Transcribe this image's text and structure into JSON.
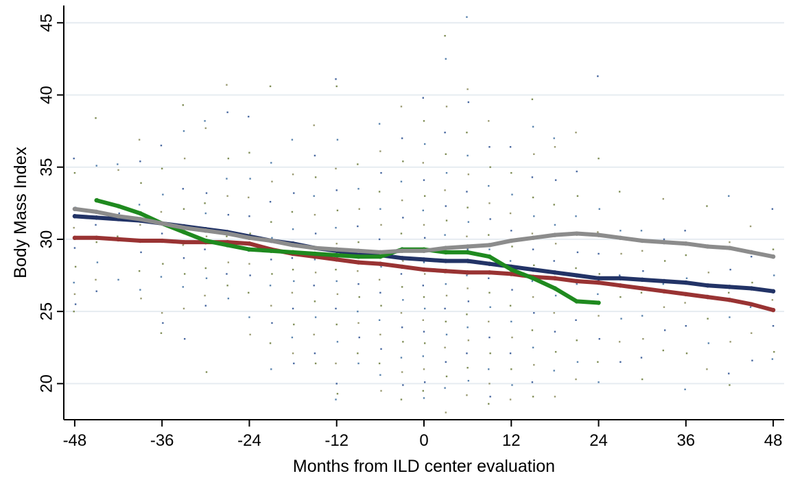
{
  "chart_data": {
    "type": "line",
    "title": "",
    "xlabel": "Months from ILD center evaluation",
    "ylabel": "Body Mass Index",
    "xlim": [
      -49.5,
      49.5
    ],
    "ylim": [
      17.5,
      46.2
    ],
    "x_ticks": [
      -48,
      -36,
      -24,
      -12,
      0,
      12,
      24,
      36,
      48
    ],
    "y_ticks": [
      20,
      25,
      30,
      35,
      40,
      45
    ],
    "grid": "horizontal",
    "legend": "none",
    "series": [
      {
        "color": "#223366",
        "x": [
          -48,
          -45,
          -42,
          -39,
          -36,
          -33,
          -30,
          -27,
          -24,
          -21,
          -18,
          -15,
          -12,
          -9,
          -6,
          -3,
          0,
          3,
          6,
          9,
          12,
          15,
          18,
          21,
          24,
          27,
          30,
          33,
          36,
          39,
          42,
          45,
          48
        ],
        "y": [
          31.6,
          31.5,
          31.4,
          31.3,
          31.1,
          30.9,
          30.7,
          30.5,
          30.2,
          29.9,
          29.7,
          29.4,
          29.2,
          29.0,
          28.9,
          28.7,
          28.6,
          28.5,
          28.5,
          28.3,
          28.1,
          27.9,
          27.7,
          27.5,
          27.3,
          27.3,
          27.2,
          27.1,
          27.0,
          26.8,
          26.7,
          26.6,
          26.4
        ]
      },
      {
        "color": "#993333",
        "x": [
          -48,
          -45,
          -42,
          -39,
          -36,
          -33,
          -30,
          -27,
          -24,
          -21,
          -18,
          -15,
          -12,
          -9,
          -6,
          -3,
          0,
          3,
          6,
          9,
          12,
          15,
          18,
          21,
          24,
          27,
          30,
          33,
          36,
          39,
          42,
          45,
          48
        ],
        "y": [
          30.1,
          30.1,
          30.0,
          29.9,
          29.9,
          29.8,
          29.8,
          29.8,
          29.7,
          29.3,
          29.0,
          28.8,
          28.6,
          28.4,
          28.3,
          28.1,
          27.9,
          27.8,
          27.7,
          27.7,
          27.6,
          27.4,
          27.3,
          27.1,
          27.0,
          26.8,
          26.6,
          26.4,
          26.2,
          26.0,
          25.8,
          25.5,
          25.1
        ]
      },
      {
        "color": "#1f8a1f",
        "x": [
          -45,
          -42,
          -39,
          -36,
          -33,
          -30,
          -27,
          -24,
          -21,
          -18,
          -15,
          -12,
          -9,
          -6,
          -3,
          0,
          3,
          6,
          9,
          12,
          15,
          18,
          21,
          24
        ],
        "y": [
          32.7,
          32.3,
          31.8,
          31.1,
          30.5,
          29.9,
          29.6,
          29.3,
          29.2,
          29.1,
          29.0,
          28.9,
          28.8,
          28.8,
          29.3,
          29.3,
          29.1,
          29.1,
          28.8,
          27.9,
          27.3,
          26.6,
          25.7,
          25.6
        ]
      },
      {
        "color": "#8c8c8c",
        "x": [
          -48,
          -45,
          -42,
          -39,
          -36,
          -33,
          -30,
          -27,
          -24,
          -21,
          -18,
          -15,
          -12,
          -9,
          -6,
          -3,
          0,
          3,
          6,
          9,
          12,
          15,
          18,
          21,
          24,
          27,
          30,
          33,
          36,
          39,
          42,
          45,
          48
        ],
        "y": [
          32.1,
          31.9,
          31.6,
          31.4,
          31.1,
          30.8,
          30.6,
          30.4,
          30.1,
          29.9,
          29.6,
          29.4,
          29.3,
          29.2,
          29.1,
          29.2,
          29.2,
          29.4,
          29.5,
          29.6,
          29.9,
          30.1,
          30.3,
          30.4,
          30.3,
          30.1,
          29.9,
          29.8,
          29.7,
          29.5,
          29.4,
          29.1,
          28.8
        ]
      }
    ],
    "scatter": {
      "colors": [
        "#2a4f8f",
        "#6a7a3a",
        "#3d6fa0",
        "#8a8a5a"
      ],
      "columns": [
        {
          "x": -48,
          "y": [
            35.6,
            34.6,
            32.2,
            30.8,
            29.4,
            28.1,
            27.0,
            26.2,
            25.5,
            25.0
          ]
        },
        {
          "x": -45,
          "y": [
            38.4,
            35.1,
            32.8,
            31.0,
            29.8,
            28.4,
            27.2,
            26.4
          ]
        },
        {
          "x": -42,
          "y": [
            35.2,
            34.8,
            31.8,
            30.2,
            27.2
          ]
        },
        {
          "x": -39,
          "y": [
            36.9,
            35.4,
            33.9,
            32.4,
            31.0,
            29.1,
            27.8,
            26.5,
            25.9
          ]
        },
        {
          "x": -36,
          "y": [
            36.5,
            34.9,
            33.1,
            31.9,
            30.4,
            28.3,
            27.4,
            24.9,
            24.2,
            23.5
          ]
        },
        {
          "x": -33,
          "y": [
            39.3,
            37.5,
            35.6,
            33.5,
            32.1,
            30.5,
            29.6,
            28.7,
            27.6,
            26.7,
            25.2,
            23.1
          ]
        },
        {
          "x": -30,
          "y": [
            38.2,
            37.7,
            33.2,
            32.5,
            31.8,
            30.2,
            29.3,
            28.0,
            27.3,
            26.1,
            25.4,
            20.8
          ]
        },
        {
          "x": -27,
          "y": [
            40.7,
            38.8,
            35.6,
            34.2,
            33.0,
            31.7,
            30.2,
            29.5,
            28.4,
            27.6,
            26.8,
            25.9
          ]
        },
        {
          "x": -24,
          "y": [
            38.5,
            36.0,
            34.2,
            32.9,
            31.6,
            30.4,
            29.2,
            28.3,
            27.5,
            26.3,
            24.6,
            23.4
          ]
        },
        {
          "x": -21,
          "y": [
            40.6,
            35.3,
            34.0,
            32.6,
            31.2,
            30.1,
            29.4,
            28.6,
            27.6,
            26.8,
            25.4,
            24.2,
            22.8,
            21.0
          ]
        },
        {
          "x": -18,
          "y": [
            36.9,
            34.5,
            33.2,
            31.9,
            30.7,
            29.6,
            28.7,
            27.9,
            27.1,
            26.3,
            25.2,
            24.1,
            23.2,
            22.1,
            21.4
          ]
        },
        {
          "x": -15,
          "y": [
            37.9,
            35.8,
            34.3,
            33.0,
            31.7,
            30.4,
            29.5,
            28.6,
            27.7,
            26.8,
            25.7,
            24.6,
            23.4,
            22.1,
            21.4
          ]
        },
        {
          "x": -12,
          "y": [
            41.1,
            40.6,
            36.9,
            34.9,
            33.4,
            32.0,
            30.8,
            29.7,
            28.8,
            27.9,
            27.1,
            26.2,
            25.2,
            24.1,
            22.9,
            21.4,
            20.0,
            19.3,
            18.9
          ]
        },
        {
          "x": -9,
          "y": [
            35.2,
            33.5,
            32.1,
            30.9,
            29.8,
            28.8,
            27.8,
            26.9,
            26.0,
            25.0,
            24.2,
            23.2,
            22.1,
            21.4
          ]
        },
        {
          "x": -6,
          "y": [
            38.0,
            36.1,
            34.6,
            33.3,
            32.1,
            31.0,
            30.0,
            29.0,
            28.1,
            27.2,
            26.3,
            25.4,
            24.4,
            23.4,
            22.4,
            21.4,
            20.6,
            19.5
          ]
        },
        {
          "x": -3,
          "y": [
            39.2,
            37.0,
            35.4,
            34.0,
            32.7,
            31.5,
            30.4,
            29.4,
            28.5,
            27.6,
            26.7,
            25.8,
            24.9,
            23.9,
            22.9,
            21.8,
            20.8,
            19.9,
            18.9
          ]
        },
        {
          "x": 0,
          "y": [
            39.8,
            38.2,
            36.6,
            35.3,
            34.1,
            33.0,
            32.0,
            31.0,
            30.1,
            29.2,
            28.4,
            27.6,
            26.8,
            26.0,
            25.2,
            24.4,
            23.6,
            22.8,
            21.9,
            21.0,
            20.1,
            19.5,
            19.0
          ]
        },
        {
          "x": 3,
          "y": [
            44.1,
            42.5,
            39.2,
            37.4,
            35.9,
            34.6,
            33.4,
            32.3,
            31.3,
            30.3,
            29.4,
            28.5,
            27.7,
            26.9,
            26.1,
            25.2,
            24.3,
            23.4,
            22.5,
            21.5,
            20.5,
            19.7,
            18.0
          ]
        },
        {
          "x": 6,
          "y": [
            45.4,
            40.4,
            39.5,
            37.4,
            35.8,
            34.5,
            33.3,
            32.2,
            31.2,
            30.2,
            29.3,
            28.4,
            27.5,
            26.6,
            25.7,
            24.8,
            23.9,
            23.0,
            22.1,
            21.1,
            20.2,
            19.2
          ]
        },
        {
          "x": 9,
          "y": [
            38.2,
            36.4,
            35.0,
            33.7,
            32.5,
            31.4,
            30.3,
            29.3,
            28.3,
            27.3,
            26.3,
            25.3,
            24.3,
            23.2,
            22.1,
            21.0,
            20.0,
            19.1,
            18.6
          ]
        },
        {
          "x": 12,
          "y": [
            36.4,
            34.6,
            33.1,
            31.8,
            30.6,
            29.5,
            28.5,
            27.5,
            26.5,
            25.4,
            24.3,
            23.2,
            22.1,
            21.0,
            19.9,
            18.9
          ]
        },
        {
          "x": 15,
          "y": [
            39.7,
            37.8,
            35.9,
            34.3,
            32.9,
            31.6,
            30.4,
            29.3,
            28.2,
            27.1,
            26.0,
            24.9,
            23.7,
            22.5,
            21.3,
            20.1,
            19.1
          ]
        },
        {
          "x": 18,
          "y": [
            37.0,
            36.4,
            34.1,
            32.4,
            31.0,
            29.7,
            28.5,
            27.3,
            26.1,
            24.9,
            23.6,
            22.2,
            20.9,
            19.1
          ]
        },
        {
          "x": 21,
          "y": [
            37.4,
            34.7,
            33.0,
            31.6,
            30.3,
            29.1,
            28.0,
            26.9,
            25.7,
            24.4,
            23.0,
            21.5,
            20.3
          ]
        },
        {
          "x": 24,
          "y": [
            41.3,
            35.6,
            32.1,
            30.5,
            29.0,
            27.6,
            26.2,
            24.7,
            23.1,
            21.5,
            20.1
          ]
        },
        {
          "x": 27,
          "y": [
            33.3,
            30.6,
            29.0,
            27.5,
            26.0,
            24.5,
            22.9,
            21.5
          ]
        },
        {
          "x": 30,
          "y": [
            30.6,
            29.2,
            27.8,
            26.3,
            24.7,
            23.1,
            21.8,
            20.3
          ]
        },
        {
          "x": 33,
          "y": [
            32.8,
            30.0,
            28.5,
            26.9,
            25.3,
            23.7,
            22.3
          ]
        },
        {
          "x": 36,
          "y": [
            30.6,
            28.9,
            27.3,
            25.6,
            24.0,
            22.1,
            19.6
          ]
        },
        {
          "x": 39,
          "y": [
            32.3,
            29.5,
            27.7,
            26.1,
            24.5,
            22.8,
            21.0
          ]
        },
        {
          "x": 42,
          "y": [
            33.0,
            29.8,
            27.9,
            26.3,
            24.6,
            22.9,
            20.7,
            19.9
          ]
        },
        {
          "x": 45,
          "y": [
            30.9,
            28.8,
            27.0,
            25.3,
            23.5,
            21.6
          ]
        },
        {
          "x": 48,
          "y": [
            32.1,
            29.3,
            27.5,
            25.8,
            24.0,
            22.2,
            21.7
          ]
        }
      ]
    }
  }
}
